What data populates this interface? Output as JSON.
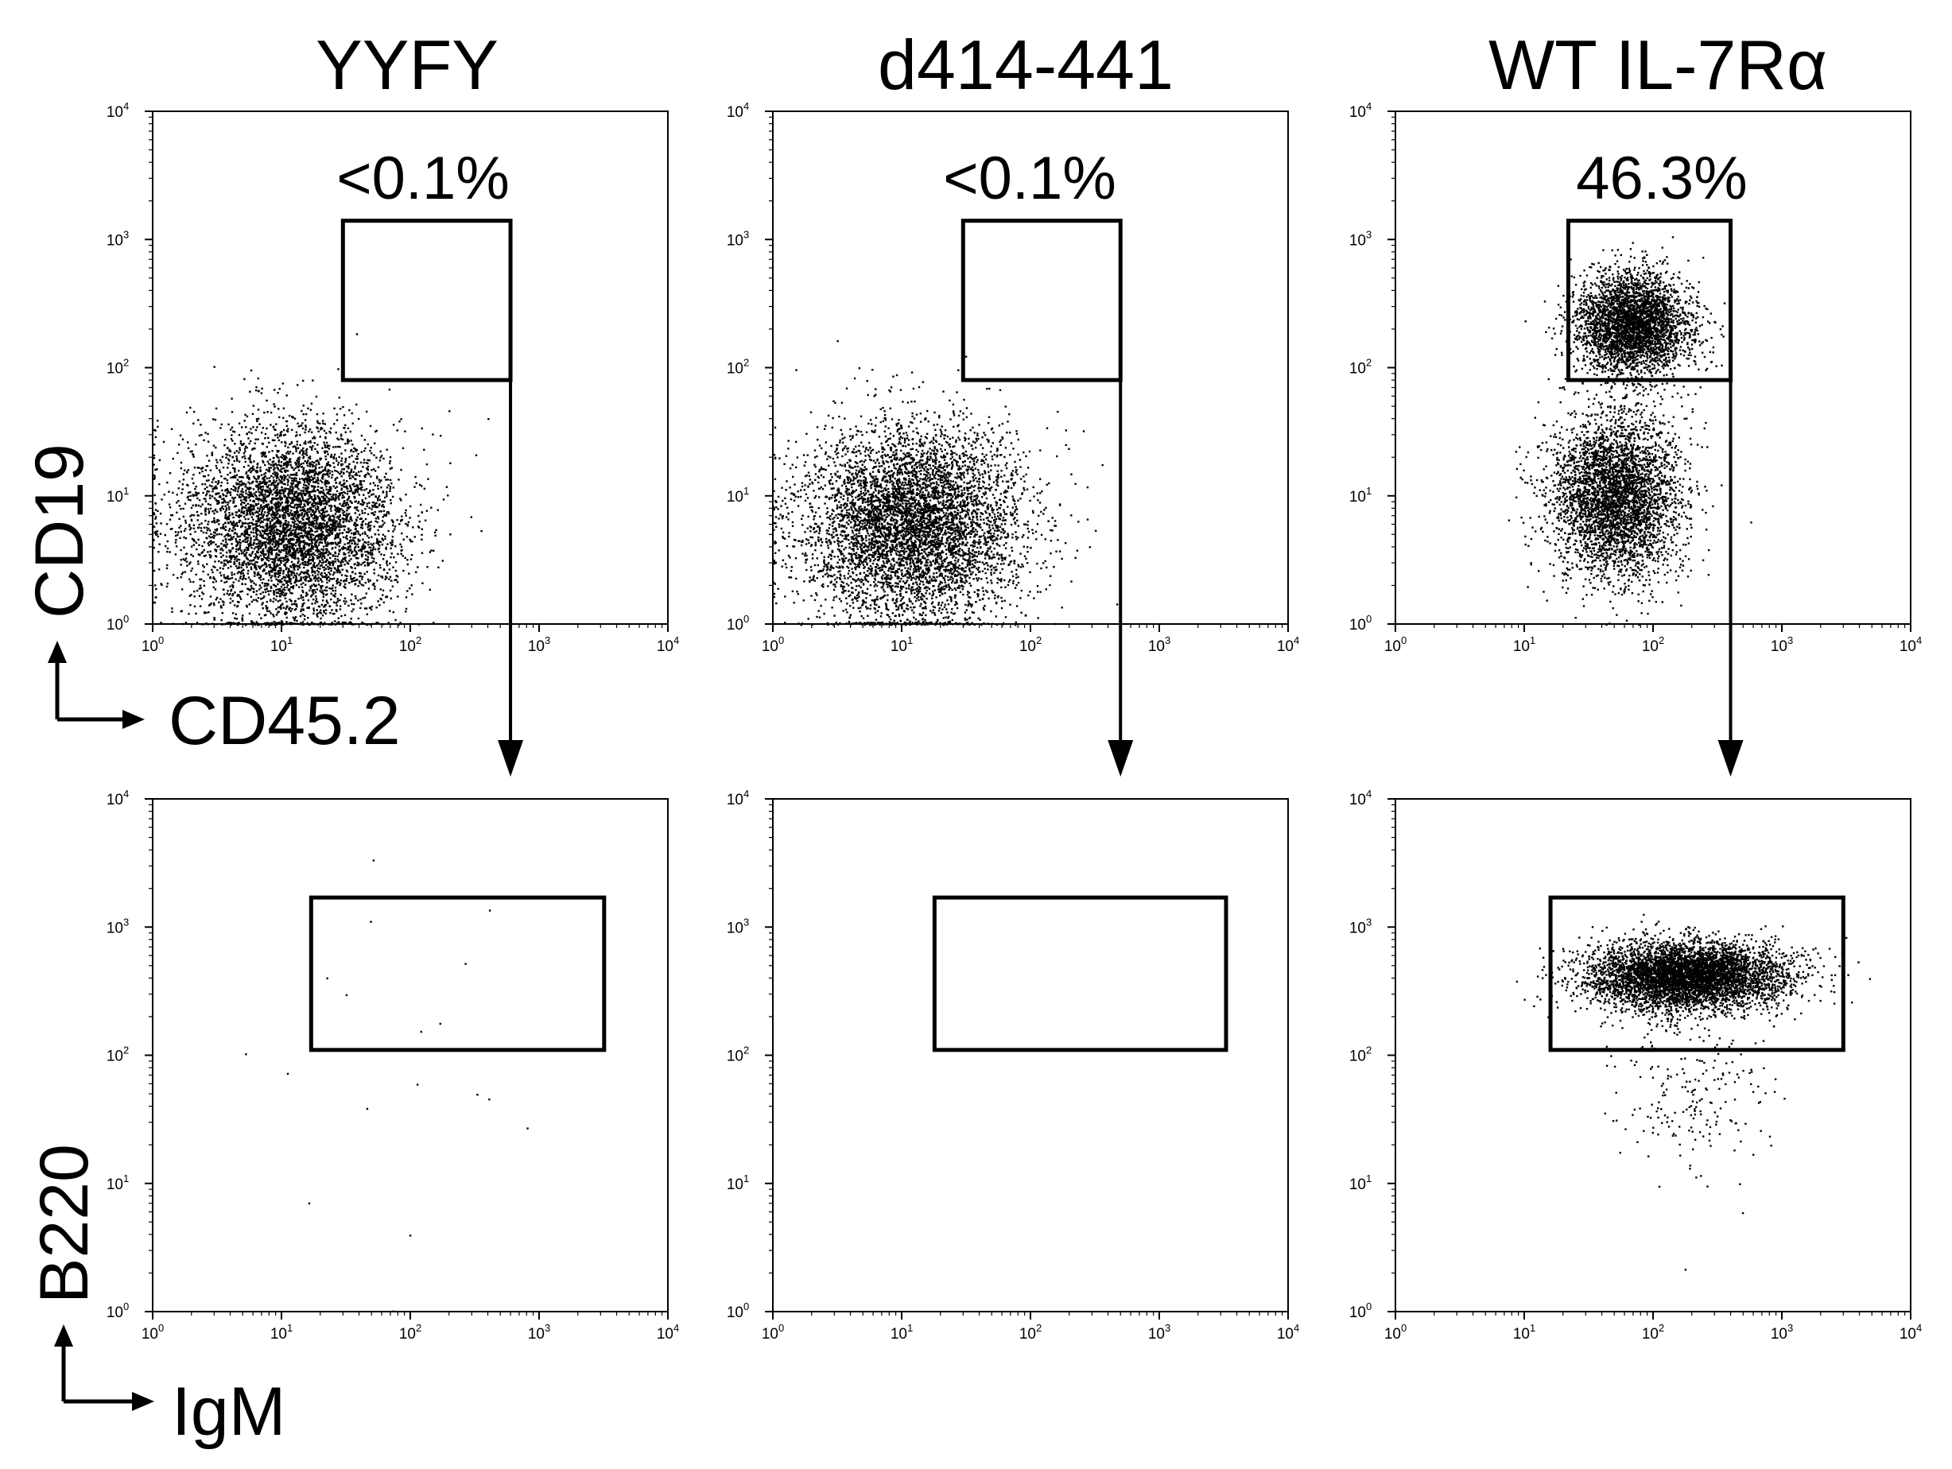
{
  "chart_data": [
    {
      "type": "scatter",
      "title": "YYFY",
      "xlabel": "CD45.2",
      "ylabel": "CD19",
      "xscale": "log",
      "yscale": "log",
      "xlim": [
        1,
        10000
      ],
      "ylim": [
        1,
        10000
      ],
      "x_ticks": [
        "10^0",
        "10^1",
        "10^2",
        "10^3",
        "10^4"
      ],
      "y_ticks": [
        "10^0",
        "10^1",
        "10^2",
        "10^3",
        "10^4"
      ],
      "gate": {
        "x": [
          30,
          600
        ],
        "y": [
          80,
          1400
        ],
        "label": "<0.1%"
      },
      "populations": [
        {
          "center_x": 12,
          "center_y": 6,
          "spread_x": 0.42,
          "spread_y": 0.38,
          "count": 5200
        }
      ]
    },
    {
      "type": "scatter",
      "title": "d414-441",
      "xlabel": "CD45.2",
      "ylabel": "CD19",
      "xscale": "log",
      "yscale": "log",
      "xlim": [
        1,
        10000
      ],
      "ylim": [
        1,
        10000
      ],
      "x_ticks": [
        "10^0",
        "10^1",
        "10^2",
        "10^3",
        "10^4"
      ],
      "y_ticks": [
        "10^0",
        "10^1",
        "10^2",
        "10^3",
        "10^4"
      ],
      "gate": {
        "x": [
          30,
          500
        ],
        "y": [
          80,
          1400
        ],
        "label": "<0.1%"
      },
      "populations": [
        {
          "center_x": 12,
          "center_y": 6,
          "spread_x": 0.42,
          "spread_y": 0.38,
          "count": 5600
        }
      ]
    },
    {
      "type": "scatter",
      "title": "WT IL-7Rα",
      "xlabel": "CD45.2",
      "ylabel": "CD19",
      "xscale": "log",
      "yscale": "log",
      "xlim": [
        1,
        10000
      ],
      "ylim": [
        1,
        10000
      ],
      "x_ticks": [
        "10^0",
        "10^1",
        "10^2",
        "10^3",
        "10^4"
      ],
      "y_ticks": [
        "10^0",
        "10^1",
        "10^2",
        "10^3",
        "10^4"
      ],
      "gate": {
        "x": [
          22,
          400
        ],
        "y": [
          80,
          1400
        ],
        "label": "46.3%"
      },
      "populations": [
        {
          "center_x": 70,
          "center_y": 220,
          "spread_x": 0.22,
          "spread_y": 0.2,
          "count": 3400
        },
        {
          "center_x": 50,
          "center_y": 10,
          "spread_x": 0.25,
          "spread_y": 0.32,
          "count": 3800
        }
      ]
    },
    {
      "type": "scatter",
      "title": "",
      "xlabel": "IgM",
      "ylabel": "B220",
      "xscale": "log",
      "yscale": "log",
      "xlim": [
        1,
        10000
      ],
      "ylim": [
        1,
        10000
      ],
      "x_ticks": [
        "10^0",
        "10^1",
        "10^2",
        "10^3",
        "10^4"
      ],
      "y_ticks": [
        "10^0",
        "10^1",
        "10^2",
        "10^3",
        "10^4"
      ],
      "gate": {
        "x": [
          17,
          3200
        ],
        "y": [
          110,
          1700
        ]
      },
      "populations": [
        {
          "center_x": 80,
          "center_y": 60,
          "spread_x": 0.5,
          "spread_y": 0.7,
          "count": 18
        }
      ]
    },
    {
      "type": "scatter",
      "title": "",
      "xlabel": "IgM",
      "ylabel": "B220",
      "xscale": "log",
      "yscale": "log",
      "xlim": [
        1,
        10000
      ],
      "ylim": [
        1,
        10000
      ],
      "x_ticks": [
        "10^0",
        "10^1",
        "10^2",
        "10^3",
        "10^4"
      ],
      "y_ticks": [
        "10^0",
        "10^1",
        "10^2",
        "10^3",
        "10^4"
      ],
      "gate": {
        "x": [
          18,
          3300
        ],
        "y": [
          110,
          1700
        ]
      },
      "populations": []
    },
    {
      "type": "scatter",
      "title": "",
      "xlabel": "IgM",
      "ylabel": "B220",
      "xscale": "log",
      "yscale": "log",
      "xlim": [
        1,
        10000
      ],
      "ylim": [
        1,
        10000
      ],
      "x_ticks": [
        "10^0",
        "10^1",
        "10^2",
        "10^3",
        "10^4"
      ],
      "y_ticks": [
        "10^0",
        "10^1",
        "10^2",
        "10^3",
        "10^4"
      ],
      "gate": {
        "x": [
          16,
          3000
        ],
        "y": [
          110,
          1700
        ]
      },
      "populations": [
        {
          "center_x": 180,
          "center_y": 420,
          "spread_x": 0.38,
          "spread_y": 0.13,
          "count": 5200
        },
        {
          "center_x": 200,
          "center_y": 60,
          "spread_x": 0.35,
          "spread_y": 0.35,
          "count": 220
        }
      ]
    }
  ],
  "axis_labels": {
    "row1_x": "CD45.2",
    "row1_y": "CD19",
    "row2_x": "IgM",
    "row2_y": "B220"
  }
}
